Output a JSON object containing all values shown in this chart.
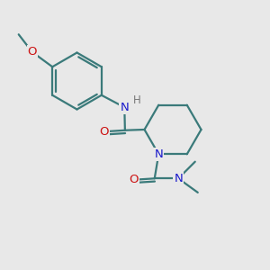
{
  "bg_color": "#e8e8e8",
  "bond_color": "#3a7a7a",
  "nitrogen_color": "#1a1acc",
  "oxygen_color": "#cc1111",
  "hydrogen_color": "#777777",
  "line_width": 1.6,
  "figsize": [
    3.0,
    3.0
  ],
  "dpi": 100,
  "xlim": [
    0,
    10
  ],
  "ylim": [
    0,
    10
  ]
}
